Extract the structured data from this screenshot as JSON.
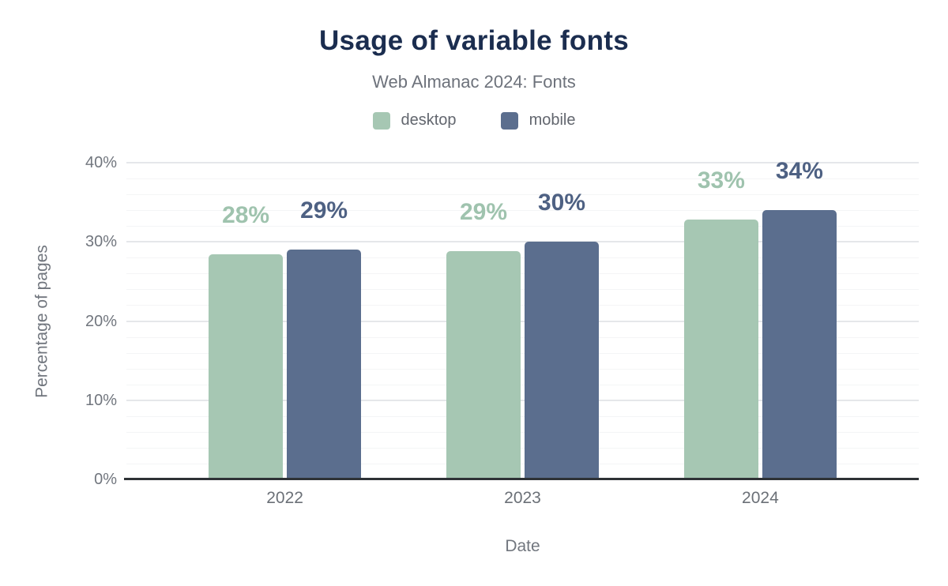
{
  "chart_data": {
    "type": "bar",
    "title": "Usage of variable fonts",
    "subtitle": "Web Almanac 2024: Fonts",
    "xlabel": "Date",
    "ylabel": "Percentage of pages",
    "categories": [
      "2022",
      "2023",
      "2024"
    ],
    "series": [
      {
        "name": "desktop",
        "color": "#a6c7b3",
        "label_color": "#9fc3ae",
        "values": [
          28.4,
          28.8,
          32.8
        ],
        "labels": [
          "28%",
          "29%",
          "33%"
        ]
      },
      {
        "name": "mobile",
        "color": "#5b6e8e",
        "label_color": "#4e6183",
        "values": [
          29.0,
          30.0,
          34.0
        ],
        "labels": [
          "29%",
          "30%",
          "34%"
        ]
      }
    ],
    "ylim": [
      0,
      40
    ],
    "y_ticks": [
      "0%",
      "10%",
      "20%",
      "30%",
      "40%"
    ],
    "major_step": 10,
    "minor_step": 2,
    "grid": "on",
    "legend_position": "top",
    "axis_line_color": "#2e3236"
  }
}
